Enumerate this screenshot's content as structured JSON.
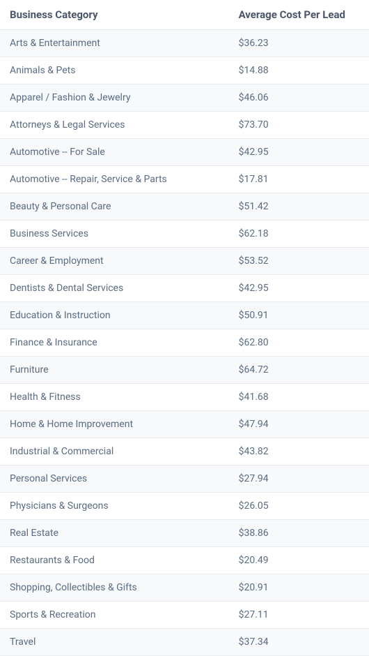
{
  "table": {
    "columns": [
      "Business Category",
      "Average Cost Per Lead"
    ],
    "header_fontsize": 15,
    "header_fontweight": 700,
    "header_color": "#4a5568",
    "cell_fontsize": 14,
    "cell_color": "#5a6b82",
    "row_bg_odd": "#f7f9fb",
    "row_bg_even": "#ffffff",
    "border_color": "#e8ecf1",
    "column_widths": [
      "62%",
      "38%"
    ],
    "rows": [
      {
        "category": "Arts & Entertainment",
        "cost": "$36.23"
      },
      {
        "category": "Animals & Pets",
        "cost": "$14.88"
      },
      {
        "category": "Apparel / Fashion & Jewelry",
        "cost": "$46.06"
      },
      {
        "category": "Attorneys & Legal Services",
        "cost": "$73.70"
      },
      {
        "category": "Automotive -- For Sale",
        "cost": "$42.95"
      },
      {
        "category": "Automotive -- Repair, Service & Parts",
        "cost": "$17.81"
      },
      {
        "category": "Beauty & Personal Care",
        "cost": "$51.42"
      },
      {
        "category": "Business Services",
        "cost": "$62.18"
      },
      {
        "category": "Career & Employment",
        "cost": "$53.52"
      },
      {
        "category": "Dentists & Dental Services",
        "cost": "$42.95"
      },
      {
        "category": "Education & Instruction",
        "cost": "$50.91"
      },
      {
        "category": "Finance & Insurance",
        "cost": "$62.80"
      },
      {
        "category": "Furniture",
        "cost": "$64.72"
      },
      {
        "category": "Health & Fitness",
        "cost": "$41.68"
      },
      {
        "category": "Home & Home Improvement",
        "cost": "$47.94"
      },
      {
        "category": "Industrial & Commercial",
        "cost": "$43.82"
      },
      {
        "category": "Personal Services",
        "cost": "$27.94"
      },
      {
        "category": "Physicians & Surgeons",
        "cost": "$26.05"
      },
      {
        "category": "Real Estate",
        "cost": "$38.86"
      },
      {
        "category": "Restaurants & Food",
        "cost": "$20.49"
      },
      {
        "category": "Shopping, Collectibles & Gifts",
        "cost": "$20.91"
      },
      {
        "category": "Sports & Recreation",
        "cost": "$27.11"
      },
      {
        "category": "Travel",
        "cost": "$37.34"
      }
    ]
  }
}
